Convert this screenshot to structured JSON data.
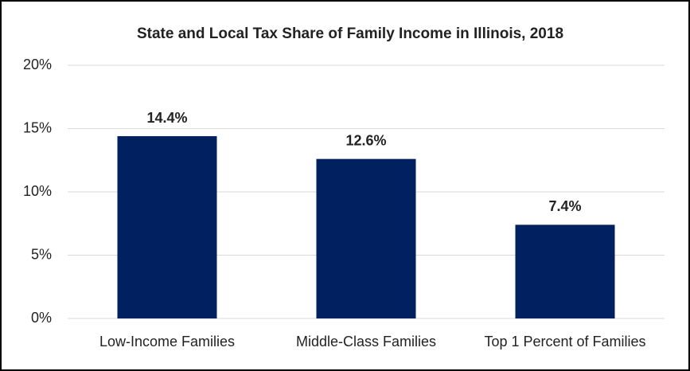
{
  "chart_data": {
    "type": "bar",
    "title": "State and Local Tax Share of Family Income in Illinois, 2018",
    "categories": [
      "Low-Income Families",
      "Middle-Class Families",
      "Top 1 Percent of Families"
    ],
    "values": [
      14.4,
      12.6,
      7.4
    ],
    "value_labels": [
      "14.4%",
      "12.6%",
      "7.4%"
    ],
    "color": "#002060",
    "ylim": [
      0,
      20
    ],
    "yticks": [
      {
        "value": 0,
        "label": "0%"
      },
      {
        "value": 5,
        "label": "5%"
      },
      {
        "value": 10,
        "label": "10%"
      },
      {
        "value": 15,
        "label": "15%"
      },
      {
        "value": 20,
        "label": "20%"
      }
    ],
    "grid": true
  }
}
